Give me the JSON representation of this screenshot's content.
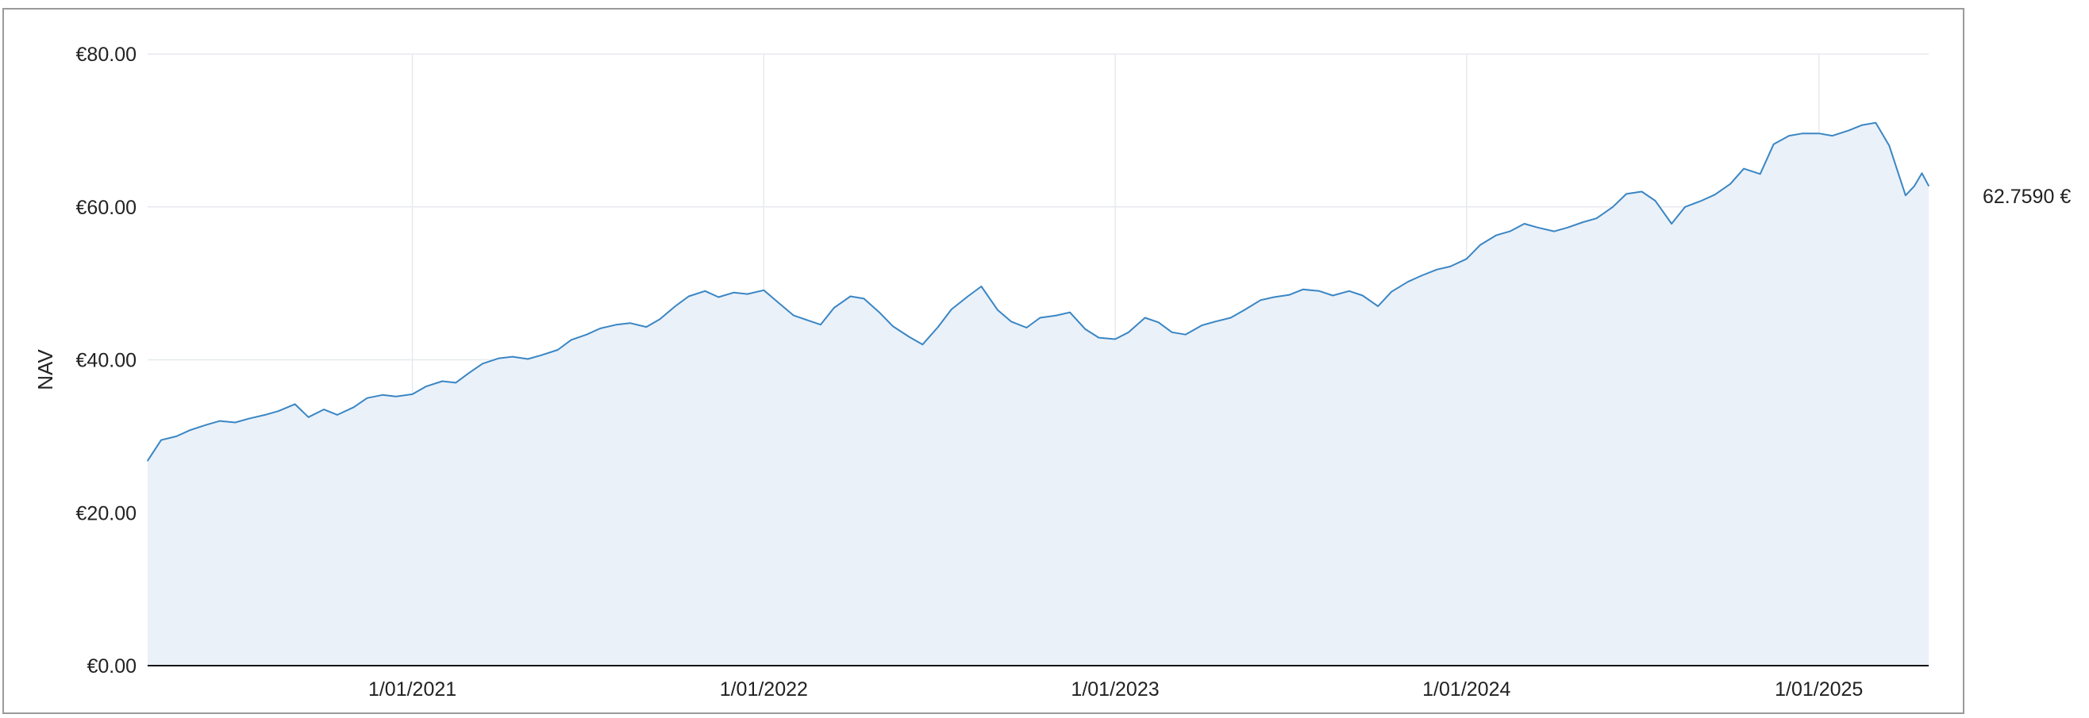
{
  "chart_data": {
    "type": "area",
    "title": "",
    "xlabel": "",
    "ylabel": "NAV",
    "x_range": [
      "2020-04-01",
      "2025-04-25"
    ],
    "ylim": [
      0,
      80
    ],
    "y_ticks": [
      0,
      20,
      40,
      60,
      80
    ],
    "y_tick_labels": [
      "€0.00",
      "€20.00",
      "€40.00",
      "€60.00",
      "€80.00"
    ],
    "x_ticks": [
      "2021-01-01",
      "2022-01-01",
      "2023-01-01",
      "2024-01-01",
      "2025-01-01"
    ],
    "x_tick_labels": [
      "1/01/2021",
      "1/01/2022",
      "1/01/2023",
      "1/01/2024",
      "1/01/2025"
    ],
    "grid": true,
    "last_value_label": "62.7590 €",
    "colors": {
      "line": "#3a86c4",
      "fill": "#eaf1f9",
      "grid": "#e6e9ee",
      "axis": "#111111"
    },
    "series": [
      {
        "x": [
          "2020-04-01",
          "2020-04-15",
          "2020-05-01",
          "2020-05-15",
          "2020-06-01",
          "2020-06-15",
          "2020-07-01",
          "2020-07-15",
          "2020-08-01",
          "2020-08-15",
          "2020-09-01",
          "2020-09-15",
          "2020-10-01",
          "2020-10-15",
          "2020-11-01",
          "2020-11-15",
          "2020-12-01",
          "2020-12-15",
          "2021-01-01",
          "2021-01-15",
          "2021-02-01",
          "2021-02-15",
          "2021-03-01",
          "2021-03-15",
          "2021-04-01",
          "2021-04-15",
          "2021-05-01",
          "2021-05-15",
          "2021-06-01",
          "2021-06-15",
          "2021-07-01",
          "2021-07-15",
          "2021-08-01",
          "2021-08-15",
          "2021-09-01",
          "2021-09-15",
          "2021-10-01",
          "2021-10-15",
          "2021-11-01",
          "2021-11-15",
          "2021-12-01",
          "2021-12-15",
          "2022-01-01",
          "2022-01-15",
          "2022-02-01",
          "2022-02-15",
          "2022-03-01",
          "2022-03-15",
          "2022-04-01",
          "2022-04-15",
          "2022-05-01",
          "2022-05-15",
          "2022-06-01",
          "2022-06-15",
          "2022-07-01",
          "2022-07-15",
          "2022-08-01",
          "2022-08-15",
          "2022-09-01",
          "2022-09-15",
          "2022-10-01",
          "2022-10-15",
          "2022-11-01",
          "2022-11-15",
          "2022-12-01",
          "2022-12-15",
          "2023-01-01",
          "2023-01-15",
          "2023-02-01",
          "2023-02-15",
          "2023-03-01",
          "2023-03-15",
          "2023-04-01",
          "2023-04-15",
          "2023-05-01",
          "2023-05-15",
          "2023-06-01",
          "2023-06-15",
          "2023-07-01",
          "2023-07-15",
          "2023-08-01",
          "2023-08-15",
          "2023-09-01",
          "2023-09-15",
          "2023-10-01",
          "2023-10-15",
          "2023-11-01",
          "2023-11-15",
          "2023-12-01",
          "2023-12-15",
          "2024-01-01",
          "2024-01-15",
          "2024-02-01",
          "2024-02-15",
          "2024-03-01",
          "2024-03-15",
          "2024-04-01",
          "2024-04-15",
          "2024-05-01",
          "2024-05-15",
          "2024-06-01",
          "2024-06-15",
          "2024-07-01",
          "2024-07-15",
          "2024-08-01",
          "2024-08-15",
          "2024-09-01",
          "2024-09-15",
          "2024-10-01",
          "2024-10-15",
          "2024-11-01",
          "2024-11-15",
          "2024-12-01",
          "2024-12-15",
          "2025-01-01",
          "2025-01-15",
          "2025-02-01",
          "2025-02-15",
          "2025-03-01",
          "2025-03-15",
          "2025-04-01",
          "2025-04-10",
          "2025-04-18",
          "2025-04-25"
        ],
        "values": [
          26.8,
          29.5,
          30.0,
          30.8,
          31.5,
          32.0,
          31.8,
          32.3,
          32.8,
          33.3,
          34.2,
          32.5,
          33.5,
          32.8,
          33.8,
          35.0,
          35.4,
          35.2,
          35.5,
          36.5,
          37.2,
          37.0,
          38.3,
          39.5,
          40.2,
          40.4,
          40.1,
          40.6,
          41.3,
          42.6,
          43.3,
          44.1,
          44.6,
          44.8,
          44.3,
          45.3,
          47.0,
          48.3,
          49.0,
          48.2,
          48.8,
          48.6,
          49.1,
          47.6,
          45.8,
          45.2,
          44.6,
          46.8,
          48.3,
          48.0,
          46.2,
          44.4,
          43.0,
          42.0,
          44.3,
          46.6,
          48.3,
          49.6,
          46.5,
          45.0,
          44.2,
          45.5,
          45.8,
          46.2,
          44.0,
          42.9,
          42.7,
          43.6,
          45.5,
          44.9,
          43.6,
          43.3,
          44.5,
          45.0,
          45.5,
          46.5,
          47.8,
          48.2,
          48.5,
          49.2,
          49.0,
          48.4,
          49.0,
          48.4,
          47.0,
          48.9,
          50.2,
          51.0,
          51.8,
          52.2,
          53.2,
          55.0,
          56.3,
          56.8,
          57.8,
          57.3,
          56.8,
          57.3,
          58.0,
          58.5,
          60.0,
          61.7,
          62.0,
          60.8,
          57.8,
          60.0,
          60.8,
          61.6,
          63.0,
          65.0,
          64.3,
          68.2,
          69.3,
          69.6,
          69.6,
          69.3,
          70.0,
          70.7,
          71.0,
          68.0,
          61.5,
          62.7,
          64.4,
          62.76
        ]
      }
    ]
  }
}
